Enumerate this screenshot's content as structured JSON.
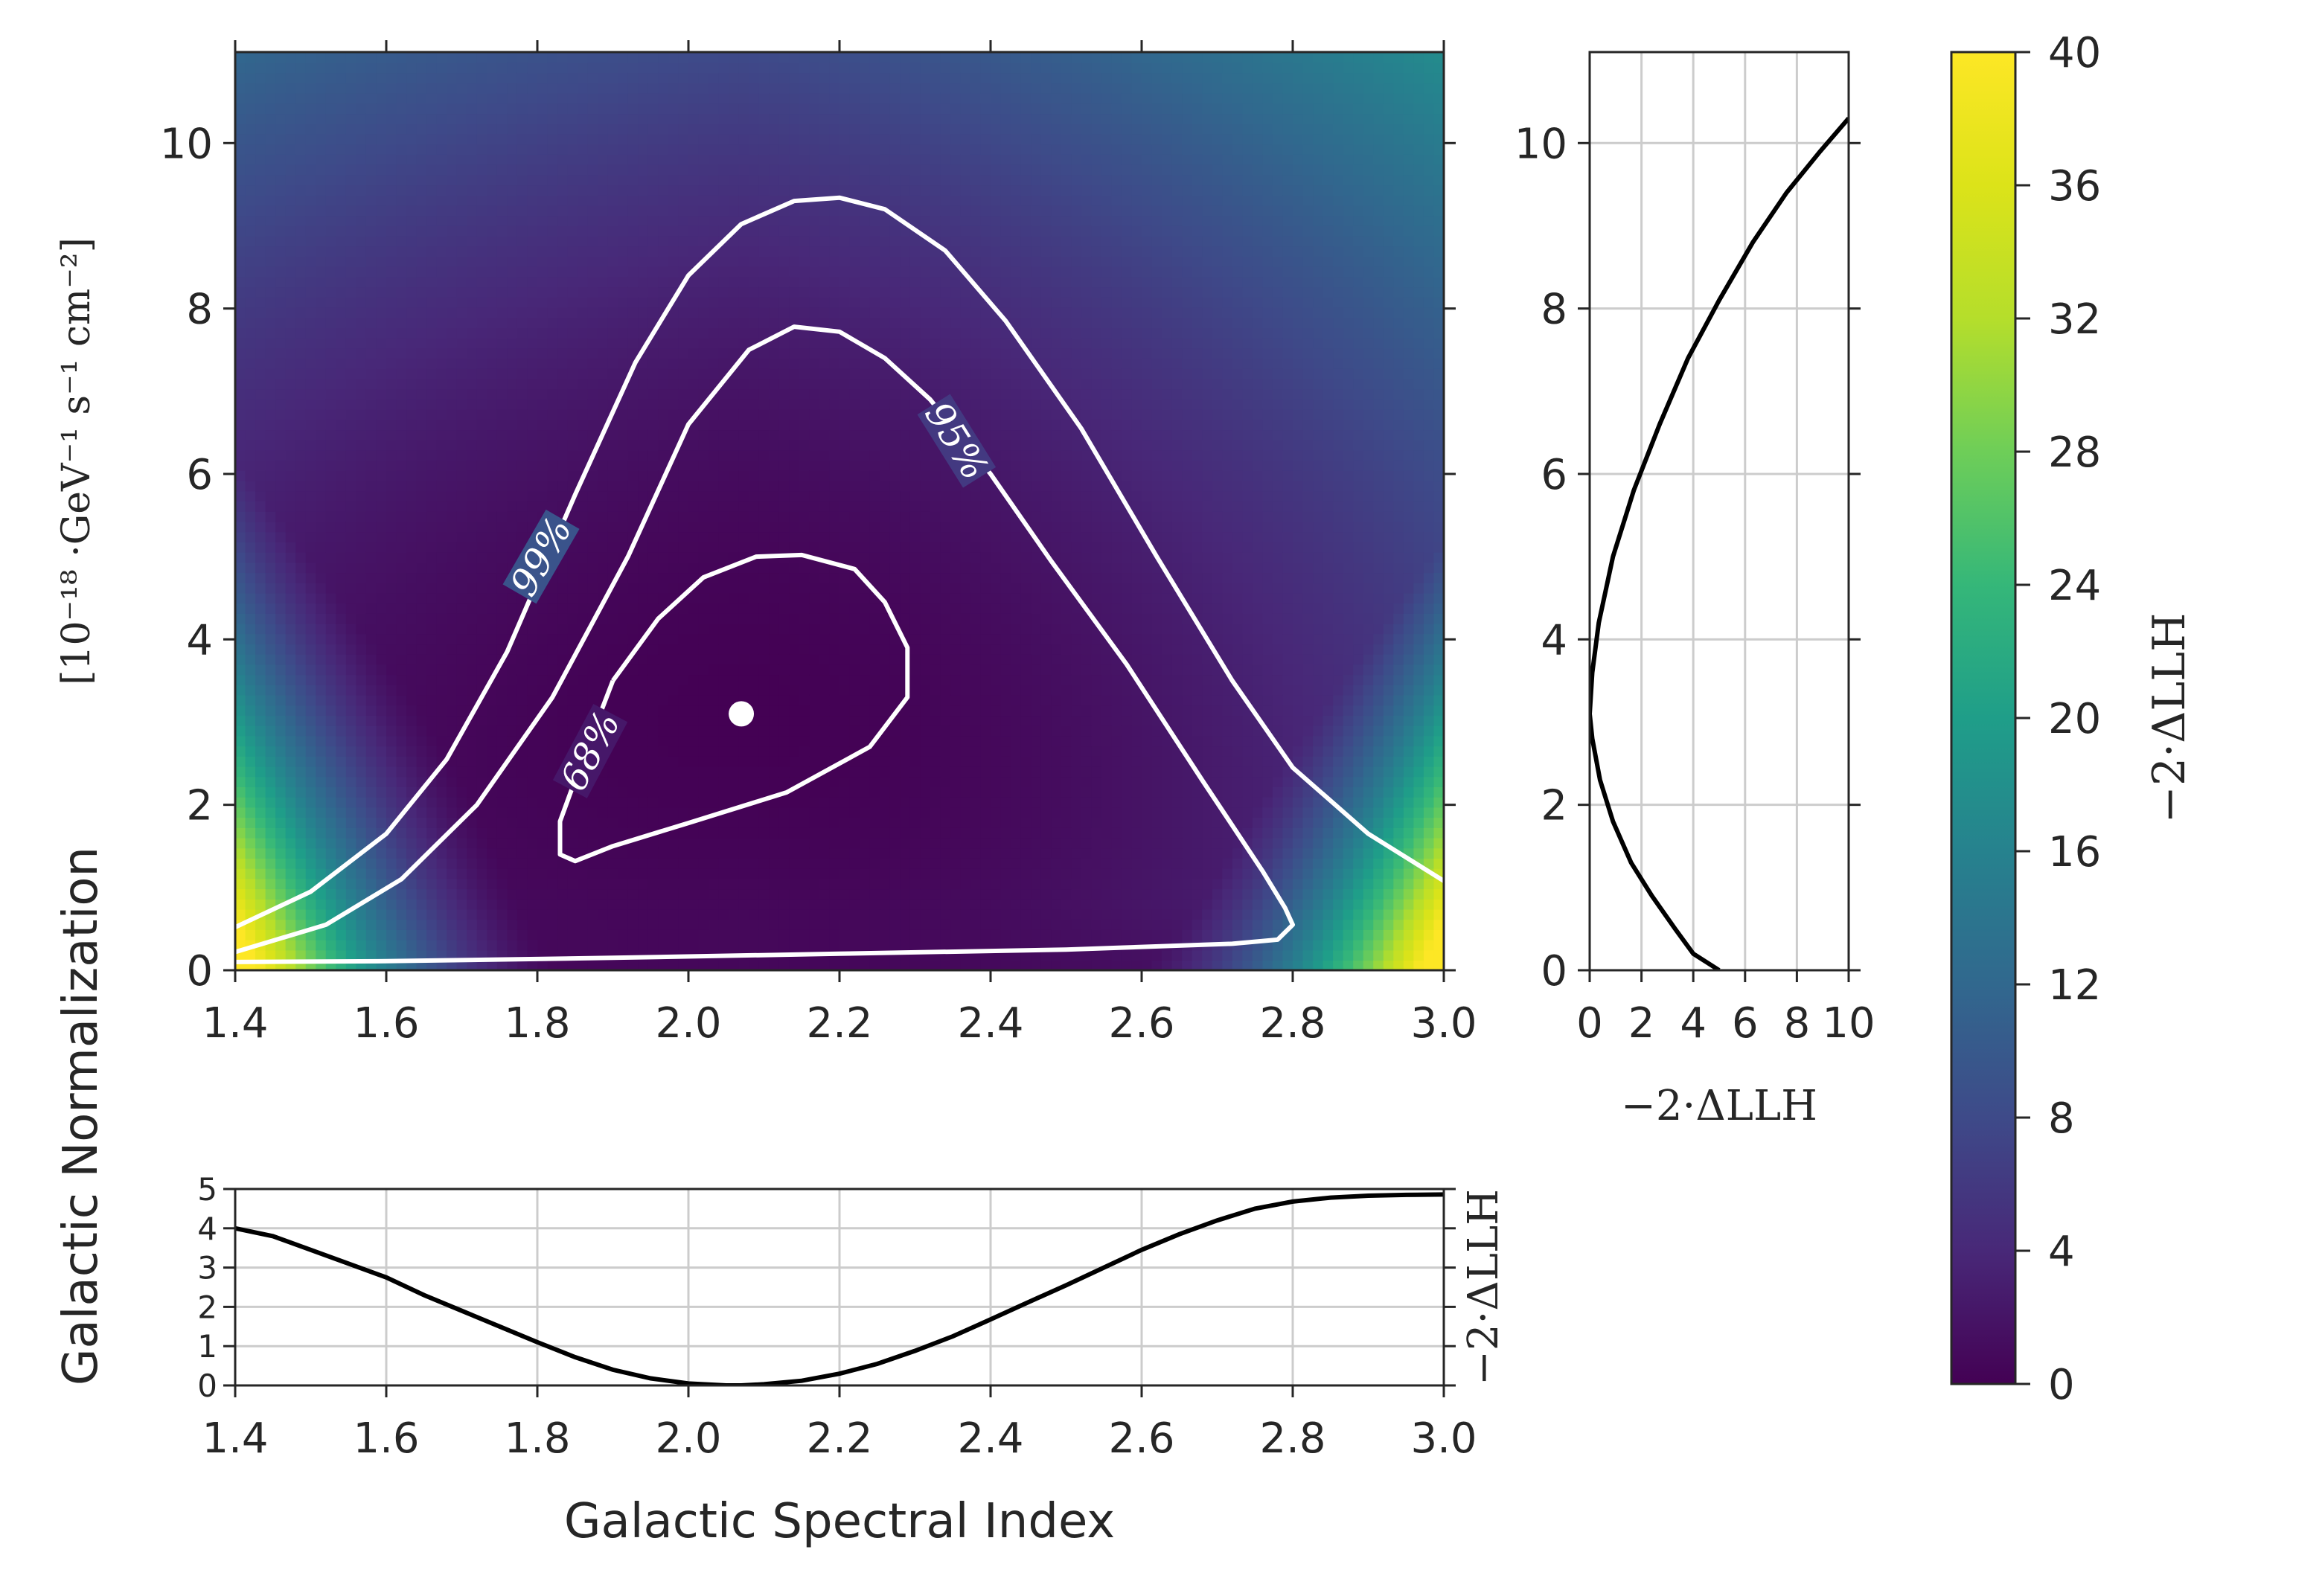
{
  "chart_data": [
    {
      "id": "main",
      "type": "heatmap",
      "title": "",
      "xlabel": "Galactic Spectral Index",
      "ylabel": "Galactic Normalization",
      "ylabel_units": "[10⁻¹⁸ ·GeV⁻¹ s⁻¹ cm⁻²]",
      "xlim": [
        1.4,
        3.0
      ],
      "ylim": [
        0,
        11.1
      ],
      "xticks": [
        1.4,
        1.6,
        1.8,
        2.0,
        2.2,
        2.4,
        2.6,
        2.8,
        3.0
      ],
      "xtick_labels": [
        "1.4",
        "1.6",
        "1.8",
        "2.0",
        "2.2",
        "2.4",
        "2.6",
        "2.8",
        "3.0"
      ],
      "yticks": [
        0,
        2,
        4,
        6,
        8,
        10
      ],
      "ytick_labels": [
        "0",
        "2",
        "4",
        "6",
        "8",
        "10"
      ],
      "colormap": "viridis",
      "color_range": [
        0,
        40
      ],
      "best_fit": {
        "x": 2.07,
        "y": 3.1
      },
      "contours": [
        {
          "label": "68%",
          "level": 2.3,
          "points": [
            [
              1.9,
              3.5
            ],
            [
              1.96,
              4.25
            ],
            [
              2.02,
              4.75
            ],
            [
              2.09,
              5.0
            ],
            [
              2.15,
              5.02
            ],
            [
              2.22,
              4.85
            ],
            [
              2.26,
              4.45
            ],
            [
              2.29,
              3.9
            ],
            [
              2.29,
              3.3
            ],
            [
              2.24,
              2.7
            ],
            [
              2.13,
              2.15
            ],
            [
              2.0,
              1.78
            ],
            [
              1.9,
              1.5
            ],
            [
              1.85,
              1.32
            ],
            [
              1.83,
              1.4
            ],
            [
              1.83,
              1.8
            ],
            [
              1.86,
              2.55
            ],
            [
              1.9,
              3.5
            ]
          ],
          "label_pos": {
            "x": 1.87,
            "y": 2.65,
            "angle": -62
          }
        },
        {
          "label": "95%",
          "level": 6.0,
          "points": [
            [
              1.4,
              0.22
            ],
            [
              1.52,
              0.55
            ],
            [
              1.62,
              1.1
            ],
            [
              1.72,
              2.0
            ],
            [
              1.82,
              3.3
            ],
            [
              1.92,
              5.0
            ],
            [
              2.0,
              6.6
            ],
            [
              2.08,
              7.5
            ],
            [
              2.14,
              7.78
            ],
            [
              2.2,
              7.72
            ],
            [
              2.26,
              7.4
            ],
            [
              2.32,
              6.9
            ],
            [
              2.4,
              6.0
            ],
            [
              2.48,
              4.95
            ],
            [
              2.58,
              3.7
            ],
            [
              2.68,
              2.3
            ],
            [
              2.76,
              1.2
            ],
            [
              2.79,
              0.75
            ],
            [
              2.8,
              0.55
            ],
            [
              2.78,
              0.37
            ],
            [
              2.72,
              0.32
            ],
            [
              2.5,
              0.25
            ],
            [
              2.2,
              0.2
            ],
            [
              1.9,
              0.15
            ],
            [
              1.6,
              0.11
            ],
            [
              1.4,
              0.1
            ]
          ],
          "label_pos": {
            "x": 2.355,
            "y": 6.4,
            "angle": 58
          }
        },
        {
          "label": "99%",
          "level": 9.21,
          "points": [
            [
              1.4,
              0.52
            ],
            [
              1.5,
              0.95
            ],
            [
              1.6,
              1.65
            ],
            [
              1.68,
              2.55
            ],
            [
              1.76,
              3.85
            ],
            [
              1.85,
              5.75
            ],
            [
              1.93,
              7.35
            ],
            [
              2.0,
              8.4
            ],
            [
              2.07,
              9.02
            ],
            [
              2.14,
              9.3
            ],
            [
              2.2,
              9.34
            ],
            [
              2.26,
              9.2
            ],
            [
              2.34,
              8.7
            ],
            [
              2.42,
              7.85
            ],
            [
              2.52,
              6.55
            ],
            [
              2.62,
              5.0
            ],
            [
              2.72,
              3.5
            ],
            [
              2.8,
              2.45
            ],
            [
              2.9,
              1.65
            ],
            [
              3.0,
              1.08
            ]
          ],
          "label_pos": {
            "x": 1.805,
            "y": 5.0,
            "angle": -60
          }
        }
      ]
    },
    {
      "id": "right-profile",
      "type": "line",
      "xlabel": "−2·ΔLLH",
      "ylabel": "",
      "xlim": [
        0,
        10
      ],
      "ylim": [
        0,
        11.1
      ],
      "xticks": [
        0,
        2,
        4,
        6,
        8,
        10
      ],
      "xtick_labels": [
        "0",
        "2",
        "4",
        "6",
        "8",
        "10"
      ],
      "yticks": [
        0,
        2,
        4,
        6,
        8,
        10
      ],
      "ytick_labels": [
        "0",
        "2",
        "4",
        "6",
        "8",
        "10"
      ],
      "grid": true,
      "x": [
        5.0,
        4.5,
        4.0,
        3.3,
        2.4,
        1.6,
        0.9,
        0.4,
        0.1,
        0.0,
        0.1,
        0.35,
        0.9,
        1.7,
        2.7,
        3.8,
        5.0,
        6.3,
        7.6,
        8.9,
        10.0
      ],
      "y": [
        0.0,
        0.1,
        0.2,
        0.5,
        0.9,
        1.3,
        1.8,
        2.3,
        2.8,
        3.1,
        3.6,
        4.2,
        5.0,
        5.8,
        6.6,
        7.4,
        8.1,
        8.8,
        9.4,
        9.9,
        10.3
      ]
    },
    {
      "id": "bottom-profile",
      "type": "line",
      "xlabel": "Galactic Spectral Index",
      "ylabel": "−2·ΔLLH",
      "xlim": [
        1.4,
        3.0
      ],
      "ylim": [
        0,
        5
      ],
      "xticks": [
        1.4,
        1.6,
        1.8,
        2.0,
        2.2,
        2.4,
        2.6,
        2.8,
        3.0
      ],
      "xtick_labels": [
        "1.4",
        "1.6",
        "1.8",
        "2.0",
        "2.2",
        "2.4",
        "2.6",
        "2.8",
        "3.0"
      ],
      "yticks": [
        0,
        1,
        2,
        3,
        4,
        5
      ],
      "ytick_labels": [
        "0",
        "1",
        "2",
        "3",
        "4",
        "5"
      ],
      "grid": true,
      "x": [
        1.4,
        1.45,
        1.5,
        1.55,
        1.6,
        1.65,
        1.7,
        1.75,
        1.8,
        1.85,
        1.9,
        1.95,
        2.0,
        2.05,
        2.07,
        2.1,
        2.15,
        2.2,
        2.25,
        2.3,
        2.35,
        2.4,
        2.45,
        2.5,
        2.55,
        2.6,
        2.65,
        2.7,
        2.75,
        2.8,
        2.85,
        2.9,
        2.95,
        3.0
      ],
      "y": [
        4.0,
        3.8,
        3.45,
        3.1,
        2.75,
        2.3,
        1.9,
        1.5,
        1.1,
        0.72,
        0.4,
        0.18,
        0.05,
        0.0,
        0.0,
        0.03,
        0.12,
        0.3,
        0.55,
        0.88,
        1.25,
        1.68,
        2.12,
        2.55,
        3.0,
        3.45,
        3.85,
        4.2,
        4.5,
        4.68,
        4.78,
        4.83,
        4.85,
        4.86
      ]
    },
    {
      "id": "colorbar",
      "type": "colorbar",
      "label": "−2·ΔLLH",
      "range": [
        0,
        40
      ],
      "ticks": [
        0,
        4,
        8,
        12,
        16,
        20,
        24,
        28,
        32,
        36,
        40
      ],
      "tick_labels": [
        "0",
        "4",
        "8",
        "12",
        "16",
        "20",
        "24",
        "28",
        "32",
        "36",
        "40"
      ],
      "colormap": "viridis"
    }
  ]
}
